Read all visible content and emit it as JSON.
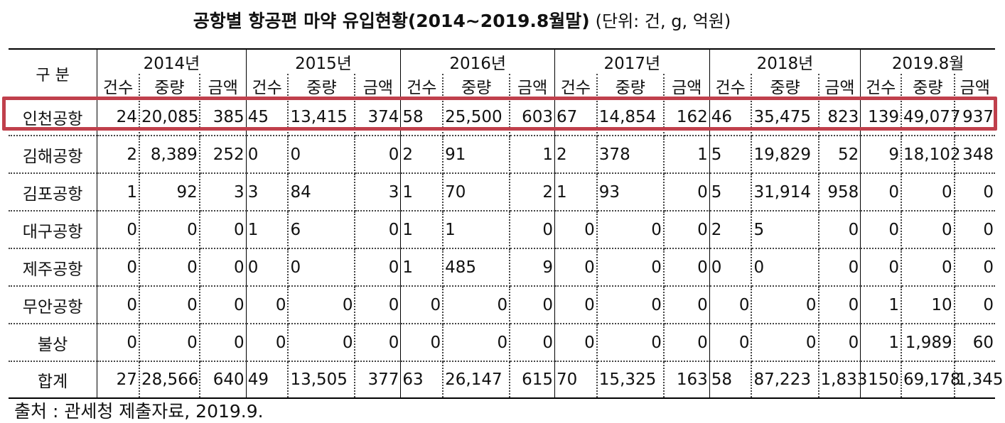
{
  "title": {
    "main": "공항별 항공편 마약 유입현황(2014∼2019.8월말)",
    "unit": "(단위: 건, g, 억원)"
  },
  "header": {
    "category_label": "구  분",
    "years": [
      "2014년",
      "2015년",
      "2016년",
      "2017년",
      "2018년",
      "2019.8월"
    ],
    "sub": [
      "건수",
      "중량",
      "금액"
    ]
  },
  "rows": [
    {
      "name": "인천공항",
      "cells": [
        "24",
        "20,085",
        "385",
        "45",
        "13,415",
        "374",
        "58",
        "25,500",
        "603",
        "67",
        "14,854",
        "162",
        "46",
        "35,475",
        "823",
        "139",
        "49,077",
        "937"
      ]
    },
    {
      "name": "김해공항",
      "cells": [
        "2",
        "8,389",
        "252",
        "0",
        "0",
        "0",
        "2",
        "91",
        "1",
        "2",
        "378",
        "1",
        "5",
        "19,829",
        "52",
        "9",
        "18,102",
        "348"
      ]
    },
    {
      "name": "김포공항",
      "cells": [
        "1",
        "92",
        "3",
        "3",
        "84",
        "3",
        "1",
        "70",
        "2",
        "1",
        "93",
        "0",
        "5",
        "31,914",
        "958",
        "0",
        "0",
        "0"
      ]
    },
    {
      "name": "대구공항",
      "cells": [
        "0",
        "0",
        "0",
        "1",
        "6",
        "0",
        "1",
        "1",
        "0",
        "0",
        "0",
        "0",
        "2",
        "5",
        "0",
        "0",
        "0",
        "0"
      ]
    },
    {
      "name": "제주공항",
      "cells": [
        "0",
        "0",
        "0",
        "0",
        "0",
        "0",
        "1",
        "485",
        "9",
        "0",
        "0",
        "0",
        "0",
        "0",
        "0",
        "0",
        "0",
        "0"
      ]
    },
    {
      "name": "무안공항",
      "cells": [
        "0",
        "0",
        "0",
        "0",
        "0",
        "0",
        "0",
        "0",
        "0",
        "0",
        "0",
        "0",
        "0",
        "0",
        "0",
        "1",
        "10",
        "0"
      ]
    },
    {
      "name": "불상",
      "cells": [
        "0",
        "0",
        "0",
        "0",
        "0",
        "0",
        "0",
        "0",
        "0",
        "0",
        "0",
        "0",
        "0",
        "0",
        "0",
        "1",
        "1,989",
        "60"
      ]
    },
    {
      "name": "합계",
      "cells": [
        "27",
        "28,566",
        "640",
        "49",
        "13,505",
        "377",
        "63",
        "26,147",
        "615",
        "70",
        "15,325",
        "163",
        "58",
        "87,223",
        "1,833",
        "150",
        "69,178",
        "1,345"
      ]
    }
  ],
  "source": "출처 : 관세청 제출자료, 2019.9.",
  "colors": {
    "highlight_border": "#c0404c"
  }
}
